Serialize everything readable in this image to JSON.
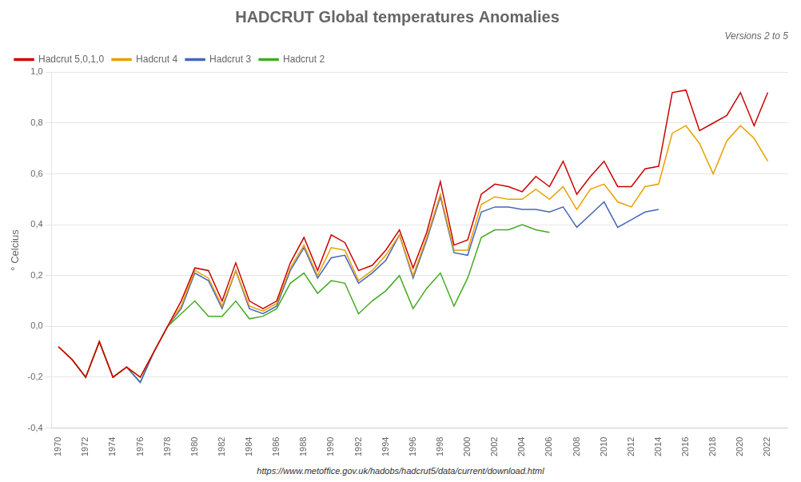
{
  "chart_data": {
    "type": "line",
    "title": "HADCRUT Global temperatures Anomalies",
    "subtitle": "Versions 2 to 5",
    "y_label": "° Celcius",
    "annotations": [
      "https://www.metoffice.gov.uk/hadobs/hadcrut5/data/current/download.html"
    ],
    "x": [
      1970,
      1971,
      1972,
      1973,
      1974,
      1975,
      1976,
      1977,
      1978,
      1979,
      1980,
      1981,
      1982,
      1983,
      1984,
      1985,
      1986,
      1987,
      1988,
      1989,
      1990,
      1991,
      1992,
      1993,
      1994,
      1995,
      1996,
      1997,
      1998,
      1999,
      2000,
      2001,
      2002,
      2003,
      2004,
      2005,
      2006,
      2007,
      2008,
      2009,
      2010,
      2011,
      2012,
      2013,
      2014,
      2015,
      2016,
      2017,
      2018,
      2019,
      2020,
      2021,
      2022
    ],
    "series": [
      {
        "name": "Hadcrut 5,0,1,0",
        "color": "#cc0000",
        "values": [
          -0.08,
          -0.13,
          -0.2,
          -0.06,
          -0.2,
          -0.16,
          -0.2,
          -0.1,
          0.0,
          0.1,
          0.23,
          0.22,
          0.1,
          0.25,
          0.1,
          0.07,
          0.1,
          0.25,
          0.35,
          0.22,
          0.36,
          0.33,
          0.22,
          0.24,
          0.3,
          0.38,
          0.23,
          0.37,
          0.57,
          0.32,
          0.34,
          0.52,
          0.56,
          0.55,
          0.53,
          0.59,
          0.55,
          0.65,
          0.52,
          0.59,
          0.65,
          0.55,
          0.55,
          0.62,
          0.63,
          0.92,
          0.93,
          0.77,
          0.8,
          0.83,
          0.92,
          0.79,
          0.92
        ]
      },
      {
        "name": "Hadcrut 4",
        "color": "#e8a000",
        "values": [
          -0.08,
          -0.13,
          -0.2,
          -0.06,
          -0.2,
          -0.16,
          -0.2,
          -0.1,
          0.0,
          0.08,
          0.22,
          0.19,
          0.08,
          0.22,
          0.08,
          0.06,
          0.09,
          0.23,
          0.32,
          0.2,
          0.31,
          0.3,
          0.18,
          0.22,
          0.28,
          0.36,
          0.2,
          0.35,
          0.52,
          0.3,
          0.3,
          0.48,
          0.51,
          0.5,
          0.5,
          0.54,
          0.5,
          0.55,
          0.46,
          0.54,
          0.56,
          0.49,
          0.47,
          0.55,
          0.56,
          0.76,
          0.79,
          0.72,
          0.6,
          0.73,
          0.79,
          0.74,
          0.65
        ]
      },
      {
        "name": "Hadcrut 3",
        "color": "#4466bb",
        "values": [
          -0.08,
          -0.13,
          -0.2,
          -0.06,
          -0.2,
          -0.16,
          -0.22,
          -0.1,
          0.0,
          0.07,
          0.21,
          0.18,
          0.07,
          0.22,
          0.07,
          0.05,
          0.08,
          0.22,
          0.31,
          0.19,
          0.27,
          0.28,
          0.17,
          0.21,
          0.26,
          0.36,
          0.19,
          0.34,
          0.51,
          0.29,
          0.28,
          0.45,
          0.47,
          0.47,
          0.46,
          0.46,
          0.45,
          0.47,
          0.39,
          0.44,
          0.49,
          0.39,
          0.42,
          0.45,
          0.46,
          null,
          null,
          null,
          null,
          null,
          null,
          null,
          null
        ]
      },
      {
        "name": "Hadcrut 2",
        "color": "#44aa22",
        "values": [
          -0.08,
          -0.13,
          -0.2,
          -0.06,
          -0.2,
          -0.16,
          -0.22,
          -0.1,
          0.0,
          0.05,
          0.1,
          0.04,
          0.04,
          0.1,
          0.03,
          0.04,
          0.07,
          0.17,
          0.21,
          0.13,
          0.18,
          0.17,
          0.05,
          0.1,
          0.14,
          0.2,
          0.07,
          0.15,
          0.21,
          0.08,
          0.19,
          0.35,
          0.38,
          0.38,
          0.4,
          0.38,
          0.37,
          null,
          null,
          null,
          null,
          null,
          null,
          null,
          null,
          null,
          null,
          null,
          null,
          null,
          null,
          null,
          null
        ]
      }
    ],
    "xlim": [
      1969.5,
      2023.5
    ],
    "xticks": [
      1970,
      1972,
      1974,
      1976,
      1978,
      1980,
      1982,
      1984,
      1986,
      1988,
      1990,
      1992,
      1994,
      1996,
      1998,
      2000,
      2002,
      2004,
      2006,
      2008,
      2010,
      2012,
      2014,
      2016,
      2018,
      2020,
      2022
    ],
    "ylim": [
      -0.4,
      1.0
    ],
    "yticks": [
      {
        "value": -0.4,
        "label": "-0,4"
      },
      {
        "value": -0.2,
        "label": "-0,2"
      },
      {
        "value": 0.0,
        "label": "0,0"
      },
      {
        "value": 0.2,
        "label": "0,2"
      },
      {
        "value": 0.4,
        "label": "0,4"
      },
      {
        "value": 0.6,
        "label": "0,6"
      },
      {
        "value": 0.8,
        "label": "0,8"
      },
      {
        "value": 1.0,
        "label": "1,0"
      }
    ],
    "grid": "y",
    "legend": "upper left"
  }
}
